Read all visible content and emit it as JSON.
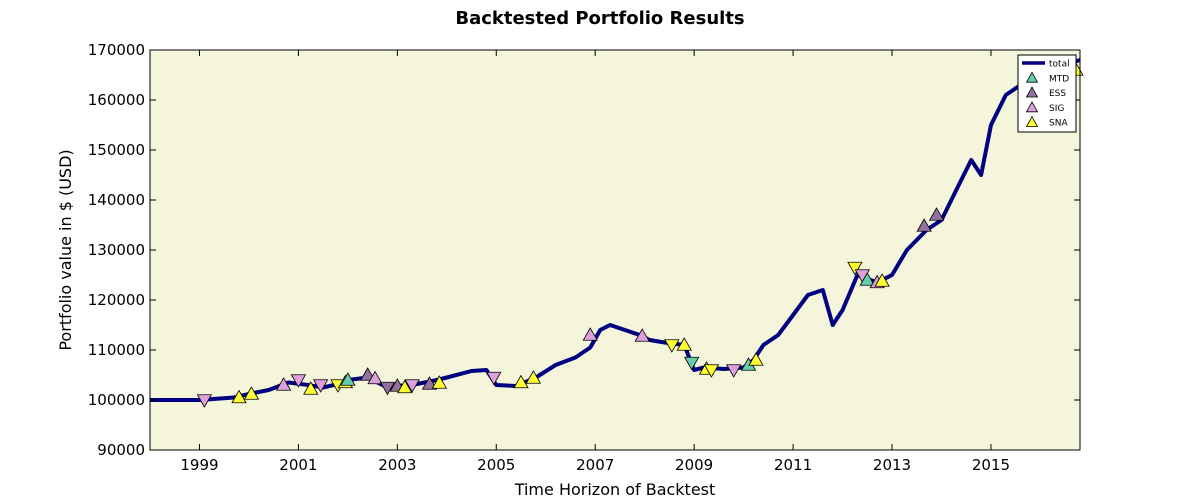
{
  "chart_data": {
    "type": "line",
    "title": "Backtested Portfolio Results",
    "xlabel": "Time Horizon of Backtest",
    "ylabel": "Portfolio value in $ (USD)",
    "xlim": [
      1998.0,
      2016.8
    ],
    "ylim": [
      90000,
      170000
    ],
    "grid": false,
    "background": "#f5f5dc",
    "legend_position": "top-right",
    "x_ticks": [
      1999,
      2001,
      2003,
      2005,
      2007,
      2009,
      2011,
      2013,
      2015
    ],
    "x_tick_labels": [
      "1999",
      "2001",
      "2003",
      "2005",
      "2007",
      "2009",
      "2011",
      "2013",
      "2015"
    ],
    "y_ticks": [
      90000,
      100000,
      110000,
      120000,
      130000,
      140000,
      150000,
      160000,
      170000
    ],
    "y_tick_labels": [
      "90000",
      "100000",
      "110000",
      "120000",
      "130000",
      "140000",
      "150000",
      "160000",
      "170000"
    ],
    "series": [
      {
        "name": "total",
        "color": "#000080",
        "x": [
          1998.0,
          1999.0,
          1999.7,
          2000.0,
          2000.4,
          2000.8,
          2001.2,
          2001.5,
          2001.8,
          2002.0,
          2002.4,
          2002.8,
          2003.0,
          2003.4,
          2003.8,
          2004.0,
          2004.5,
          2004.8,
          2005.0,
          2005.4,
          2005.8,
          2006.2,
          2006.6,
          2006.9,
          2007.1,
          2007.3,
          2007.6,
          2007.9,
          2008.1,
          2008.4,
          2008.8,
          2009.0,
          2009.2,
          2009.6,
          2010.0,
          2010.2,
          2010.4,
          2010.7,
          2011.0,
          2011.3,
          2011.6,
          2011.8,
          2012.0,
          2012.3,
          2012.7,
          2013.0,
          2013.3,
          2013.7,
          2014.0,
          2014.3,
          2014.6,
          2014.8,
          2015.0,
          2015.3,
          2015.6,
          2015.9,
          2016.1,
          2016.3,
          2016.5,
          2016.8
        ],
        "values": [
          100000,
          100000,
          100500,
          101200,
          102000,
          103500,
          103000,
          102500,
          103200,
          104000,
          104500,
          102500,
          102800,
          103200,
          104000,
          104500,
          105800,
          106000,
          103000,
          102800,
          104500,
          107000,
          108500,
          110500,
          114000,
          115000,
          114000,
          113000,
          112000,
          111500,
          111000,
          106000,
          106500,
          106200,
          106500,
          108000,
          111000,
          113000,
          117000,
          121000,
          122000,
          115000,
          118000,
          125000,
          123500,
          125000,
          130000,
          134000,
          136000,
          142000,
          148000,
          145000,
          155000,
          161000,
          163000,
          165000,
          160000,
          164000,
          167000,
          168000
        ]
      },
      {
        "name": "MTD",
        "marker": "triangle",
        "color": "#66cdaa"
      },
      {
        "name": "ESS",
        "marker": "triangle",
        "color": "#9370a0"
      },
      {
        "name": "SIG",
        "marker": "triangle",
        "color": "#dda0dd"
      },
      {
        "name": "SNA",
        "marker": "triangle",
        "color": "#ffff33"
      }
    ],
    "markers": [
      {
        "series": "SIG",
        "direction": "down",
        "x": 1999.1,
        "y": 100000
      },
      {
        "series": "SNA",
        "direction": "up",
        "x": 1999.8,
        "y": 100500
      },
      {
        "series": "SNA",
        "direction": "up",
        "x": 2000.05,
        "y": 101200
      },
      {
        "series": "SIG",
        "direction": "up",
        "x": 2000.7,
        "y": 103000
      },
      {
        "series": "SIG",
        "direction": "down",
        "x": 2001.0,
        "y": 104000
      },
      {
        "series": "SNA",
        "direction": "up",
        "x": 2001.25,
        "y": 102200
      },
      {
        "series": "SIG",
        "direction": "down",
        "x": 2001.45,
        "y": 103000
      },
      {
        "series": "SNA",
        "direction": "down",
        "x": 2001.8,
        "y": 103000
      },
      {
        "series": "SNA",
        "direction": "up",
        "x": 2001.95,
        "y": 103500
      },
      {
        "series": "MTD",
        "direction": "up",
        "x": 2002.0,
        "y": 104000
      },
      {
        "series": "ESS",
        "direction": "up",
        "x": 2002.4,
        "y": 105000
      },
      {
        "series": "SIG",
        "direction": "up",
        "x": 2002.55,
        "y": 104300
      },
      {
        "series": "ESS",
        "direction": "down",
        "x": 2002.8,
        "y": 102500
      },
      {
        "series": "ESS",
        "direction": "up",
        "x": 2003.0,
        "y": 102800
      },
      {
        "series": "SNA",
        "direction": "up",
        "x": 2003.15,
        "y": 102500
      },
      {
        "series": "SIG",
        "direction": "down",
        "x": 2003.3,
        "y": 103000
      },
      {
        "series": "ESS",
        "direction": "up",
        "x": 2003.65,
        "y": 103200
      },
      {
        "series": "SNA",
        "direction": "up",
        "x": 2003.85,
        "y": 103400
      },
      {
        "series": "SIG",
        "direction": "down",
        "x": 2004.95,
        "y": 104500
      },
      {
        "series": "SNA",
        "direction": "up",
        "x": 2005.5,
        "y": 103500
      },
      {
        "series": "SNA",
        "direction": "up",
        "x": 2005.75,
        "y": 104400
      },
      {
        "series": "SIG",
        "direction": "up",
        "x": 2006.9,
        "y": 113000
      },
      {
        "series": "SIG",
        "direction": "up",
        "x": 2007.95,
        "y": 112800
      },
      {
        "series": "SNA",
        "direction": "down",
        "x": 2008.55,
        "y": 111000
      },
      {
        "series": "SNA",
        "direction": "up",
        "x": 2008.8,
        "y": 111000
      },
      {
        "series": "MTD",
        "direction": "down",
        "x": 2008.95,
        "y": 107500
      },
      {
        "series": "SNA",
        "direction": "up",
        "x": 2009.25,
        "y": 106200
      },
      {
        "series": "SNA",
        "direction": "down",
        "x": 2009.35,
        "y": 106000
      },
      {
        "series": "SIG",
        "direction": "down",
        "x": 2009.8,
        "y": 106000
      },
      {
        "series": "MTD",
        "direction": "up",
        "x": 2010.1,
        "y": 107000
      },
      {
        "series": "SNA",
        "direction": "up",
        "x": 2010.25,
        "y": 108000
      },
      {
        "series": "SNA",
        "direction": "down",
        "x": 2012.25,
        "y": 126500
      },
      {
        "series": "SIG",
        "direction": "down",
        "x": 2012.4,
        "y": 125000
      },
      {
        "series": "MTD",
        "direction": "up",
        "x": 2012.5,
        "y": 124000
      },
      {
        "series": "SIG",
        "direction": "up",
        "x": 2012.7,
        "y": 123500
      },
      {
        "series": "SNA",
        "direction": "up",
        "x": 2012.8,
        "y": 123800
      },
      {
        "series": "ESS",
        "direction": "up",
        "x": 2013.65,
        "y": 134800
      },
      {
        "series": "ESS",
        "direction": "up",
        "x": 2013.9,
        "y": 137000
      },
      {
        "series": "SNA",
        "direction": "up",
        "x": 2016.75,
        "y": 166000
      }
    ]
  }
}
